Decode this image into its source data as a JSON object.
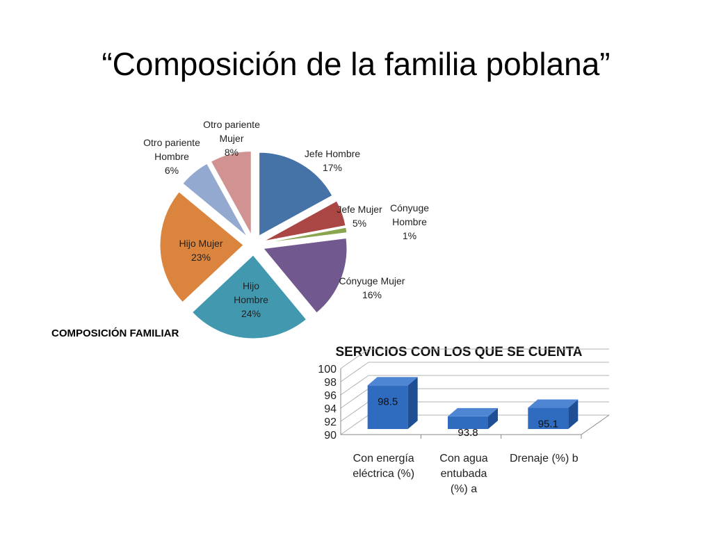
{
  "slide": {
    "title": "“Composición de la familia poblana”"
  },
  "chart_data": [
    {
      "type": "pie",
      "title": "COMPOSICIÓN FAMILIAR",
      "slices": [
        {
          "name": "Jefe Hombre",
          "value": 17,
          "label": "17%",
          "color": "#4572a7"
        },
        {
          "name": "Jefe Mujer",
          "value": 5,
          "label": "5%",
          "color": "#aa4643"
        },
        {
          "name": "Cónyuge Hombre",
          "value": 1,
          "label": "1%",
          "color": "#89a54e"
        },
        {
          "name": "Cónyuge Mujer",
          "value": 16,
          "label": "16%",
          "color": "#71588f"
        },
        {
          "name": "Hijo Hombre",
          "value": 24,
          "label": "24%",
          "color": "#4198af"
        },
        {
          "name": "Hijo Mujer",
          "value": 23,
          "label": "23%",
          "color": "#db843d"
        },
        {
          "name": "Otro pariente Hombre",
          "value": 6,
          "label": "6%",
          "color": "#93a9cf"
        },
        {
          "name": "Otro pariente Mujer",
          "value": 8,
          "label": "8%",
          "color": "#d19392"
        }
      ],
      "legend": "none"
    },
    {
      "type": "bar",
      "title": "SERVICIOS  CON LOS QUE SE CUENTA",
      "categories": [
        "Con energía eléctrica (%)",
        "Con agua entubada (%) a",
        "Drenaje (%) b"
      ],
      "values": [
        98.5,
        93.8,
        95.1
      ],
      "ylim": [
        90,
        100
      ],
      "yticks": [
        "90",
        "92",
        "94",
        "96",
        "98",
        "100"
      ],
      "grid": true,
      "color": "#2f6cc0"
    }
  ]
}
